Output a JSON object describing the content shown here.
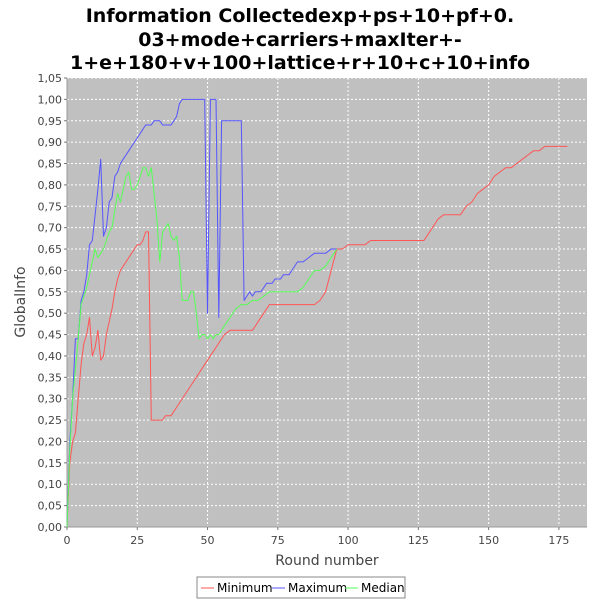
{
  "chart_data": {
    "type": "line",
    "title_lines": [
      "Information Collectedexp+ps+10+pf+0.",
      "03+mode+carriers+maxIter+-",
      "1+e+180+v+100+lattice+r+10+c+10+info"
    ],
    "xlabel": "Round number",
    "ylabel": "GlobalInfo",
    "xlim": [
      0,
      185
    ],
    "ylim": [
      0,
      1.05
    ],
    "x_ticks": [
      0,
      25,
      50,
      75,
      100,
      125,
      150,
      175
    ],
    "x_tick_labels": [
      "0",
      "25",
      "50",
      "75",
      "100",
      "125",
      "150",
      "175"
    ],
    "y_ticks": [
      0,
      0.05,
      0.1,
      0.15,
      0.2,
      0.25,
      0.3,
      0.35,
      0.4,
      0.45,
      0.5,
      0.55,
      0.6,
      0.65,
      0.7,
      0.75,
      0.8,
      0.85,
      0.9,
      0.95,
      1.0,
      1.05
    ],
    "y_tick_labels": [
      "0,00",
      "0,05",
      "0,10",
      "0,15",
      "0,20",
      "0,25",
      "0,30",
      "0,35",
      "0,40",
      "0,45",
      "0,50",
      "0,55",
      "0,60",
      "0,65",
      "0,70",
      "0,75",
      "0,80",
      "0,85",
      "0,90",
      "0,95",
      "1,00",
      "1,05"
    ],
    "grid": true,
    "legend_position": "bottom-center",
    "plot_background": "#c0c0c0",
    "series": [
      {
        "name": "Minimum",
        "color": "#ff5555",
        "x": [
          0,
          1,
          2,
          3,
          4,
          5,
          6,
          7,
          8,
          9,
          10,
          11,
          12,
          13,
          14,
          15,
          16,
          17,
          18,
          19,
          20,
          21,
          22,
          23,
          24,
          25,
          26,
          27,
          28,
          29,
          30,
          31,
          32,
          33,
          34,
          35,
          36,
          37,
          38,
          40,
          42,
          44,
          46,
          48,
          50,
          52,
          54,
          56,
          58,
          60,
          62,
          64,
          66,
          68,
          70,
          72,
          74,
          76,
          78,
          80,
          82,
          84,
          86,
          88,
          90,
          92,
          94,
          96,
          98,
          100,
          102,
          104,
          106,
          108,
          110,
          112,
          115,
          118,
          121,
          124,
          127,
          128,
          130,
          132,
          134,
          136,
          138,
          140,
          142,
          144,
          146,
          148,
          150,
          152,
          154,
          156,
          158,
          160,
          162,
          164,
          166,
          168,
          170,
          172,
          174,
          176,
          178
        ],
        "values": [
          0.0,
          0.15,
          0.2,
          0.22,
          0.3,
          0.38,
          0.43,
          0.45,
          0.49,
          0.4,
          0.42,
          0.46,
          0.39,
          0.4,
          0.45,
          0.48,
          0.51,
          0.55,
          0.58,
          0.6,
          0.61,
          0.62,
          0.63,
          0.64,
          0.65,
          0.66,
          0.66,
          0.67,
          0.69,
          0.69,
          0.25,
          0.25,
          0.25,
          0.25,
          0.25,
          0.26,
          0.26,
          0.26,
          0.27,
          0.29,
          0.31,
          0.33,
          0.35,
          0.37,
          0.39,
          0.41,
          0.43,
          0.45,
          0.46,
          0.46,
          0.46,
          0.46,
          0.46,
          0.48,
          0.5,
          0.52,
          0.52,
          0.52,
          0.52,
          0.52,
          0.52,
          0.52,
          0.52,
          0.52,
          0.53,
          0.55,
          0.6,
          0.65,
          0.65,
          0.66,
          0.66,
          0.66,
          0.66,
          0.67,
          0.67,
          0.67,
          0.67,
          0.67,
          0.67,
          0.67,
          0.67,
          0.68,
          0.7,
          0.72,
          0.73,
          0.73,
          0.73,
          0.73,
          0.75,
          0.76,
          0.78,
          0.79,
          0.8,
          0.82,
          0.83,
          0.84,
          0.84,
          0.85,
          0.86,
          0.87,
          0.88,
          0.88,
          0.89,
          0.89,
          0.89,
          0.89,
          0.89
        ]
      },
      {
        "name": "Maximum",
        "color": "#5555ff",
        "x": [
          0,
          1,
          2,
          3,
          4,
          5,
          6,
          7,
          8,
          9,
          10,
          11,
          12,
          13,
          14,
          15,
          16,
          17,
          18,
          19,
          20,
          21,
          22,
          23,
          24,
          25,
          26,
          27,
          28,
          29,
          30,
          31,
          32,
          33,
          34,
          35,
          36,
          37,
          38,
          39,
          40,
          41,
          42,
          44,
          46,
          48,
          49,
          50,
          51,
          52,
          53,
          54,
          55,
          56,
          58,
          60,
          62,
          63,
          64,
          65,
          66,
          67,
          68,
          69,
          70,
          71,
          72,
          73,
          74,
          75,
          76,
          77,
          78,
          79,
          80,
          82,
          84,
          86,
          88,
          90,
          92,
          94,
          96
        ],
        "values": [
          0.0,
          0.2,
          0.3,
          0.44,
          0.44,
          0.53,
          0.55,
          0.59,
          0.66,
          0.67,
          0.73,
          0.79,
          0.86,
          0.68,
          0.7,
          0.76,
          0.77,
          0.82,
          0.83,
          0.85,
          0.86,
          0.87,
          0.88,
          0.89,
          0.9,
          0.91,
          0.92,
          0.93,
          0.94,
          0.94,
          0.94,
          0.95,
          0.95,
          0.95,
          0.94,
          0.94,
          0.94,
          0.94,
          0.95,
          0.96,
          0.99,
          1.0,
          1.0,
          1.0,
          1.0,
          1.0,
          1.0,
          0.5,
          1.0,
          1.0,
          1.0,
          0.49,
          0.95,
          0.95,
          0.95,
          0.95,
          0.95,
          0.53,
          0.54,
          0.55,
          0.54,
          0.55,
          0.55,
          0.55,
          0.56,
          0.57,
          0.57,
          0.57,
          0.58,
          0.58,
          0.58,
          0.59,
          0.59,
          0.59,
          0.6,
          0.62,
          0.62,
          0.63,
          0.64,
          0.64,
          0.64,
          0.65,
          0.65
        ]
      },
      {
        "name": "Median",
        "color": "#55ff55",
        "x": [
          0,
          1,
          2,
          3,
          4,
          5,
          6,
          7,
          8,
          9,
          10,
          11,
          12,
          13,
          14,
          15,
          16,
          17,
          18,
          19,
          20,
          21,
          22,
          23,
          24,
          25,
          26,
          27,
          28,
          29,
          30,
          31,
          32,
          33,
          34,
          35,
          36,
          37,
          38,
          39,
          40,
          41,
          42,
          43,
          44,
          45,
          46,
          47,
          48,
          49,
          50,
          51,
          52,
          53,
          54,
          56,
          58,
          60,
          62,
          64,
          66,
          68,
          70,
          72,
          74,
          76,
          78,
          80,
          82,
          84,
          86,
          88,
          90,
          92,
          94,
          96
        ],
        "values": [
          0.0,
          0.18,
          0.3,
          0.37,
          0.44,
          0.52,
          0.54,
          0.56,
          0.59,
          0.62,
          0.65,
          0.63,
          0.64,
          0.65,
          0.67,
          0.69,
          0.7,
          0.74,
          0.78,
          0.76,
          0.79,
          0.82,
          0.83,
          0.79,
          0.79,
          0.8,
          0.82,
          0.84,
          0.84,
          0.82,
          0.84,
          0.78,
          0.72,
          0.62,
          0.69,
          0.7,
          0.71,
          0.68,
          0.67,
          0.68,
          0.63,
          0.53,
          0.53,
          0.53,
          0.55,
          0.55,
          0.5,
          0.44,
          0.45,
          0.45,
          0.44,
          0.45,
          0.44,
          0.45,
          0.45,
          0.47,
          0.49,
          0.51,
          0.52,
          0.52,
          0.53,
          0.53,
          0.54,
          0.55,
          0.55,
          0.55,
          0.55,
          0.55,
          0.55,
          0.56,
          0.58,
          0.6,
          0.6,
          0.61,
          0.63,
          0.65
        ]
      }
    ]
  }
}
